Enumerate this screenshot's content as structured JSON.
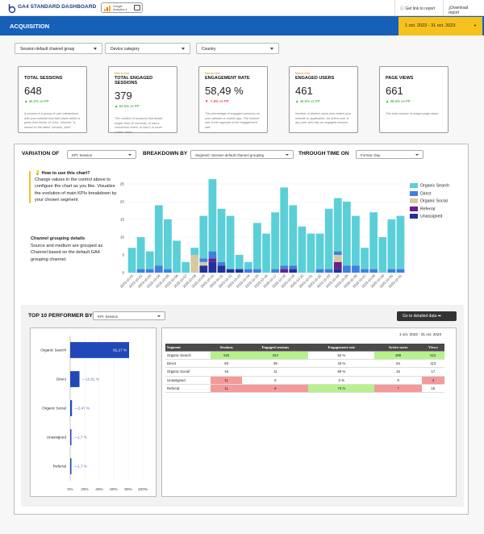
{
  "app": {
    "title": "GA4 STANDARD DASHBOARD",
    "badge_text": "Google Analytics 4",
    "get_link_label": "Get link to report",
    "download_label": "Download report"
  },
  "header": {
    "title": "ACQUISITION",
    "date_range": "1 oct. 2023 - 31 oct. 2023"
  },
  "filters": [
    {
      "label": "Session default channel group"
    },
    {
      "label": "Device category"
    },
    {
      "label": "Country"
    }
  ],
  "kpis": [
    {
      "small": "",
      "title": "TOTAL SESSIONS",
      "value": "648",
      "change": "46,3% vs PP",
      "direction": "up",
      "desc": "A session is a group of user interactions with your website that take place within a given time frame. In GA4, \"session\" is based on the latest \"session_start\""
    },
    {
      "small": "New in GA4",
      "title": "TOTAL ENGAGED SESSIONS",
      "value": "379",
      "change": "63,6% vs PP",
      "direction": "up",
      "desc": "The number of sessions that lasted longer than 10 seconds, or had a conversion event, or had 2 or more screen views."
    },
    {
      "small": "New in GA4",
      "title": "ENGAGEMENT RATE",
      "value": "58,49 %",
      "change": "-7,9% vs PP",
      "direction": "down",
      "desc": "The percentage of engaged sessions on your website or mobile app. The bounce rate is the opposite of the engagement rate."
    },
    {
      "small": "New in GA4",
      "title": "ENGAGED USERS",
      "value": "461",
      "change": "45,9% vs PP",
      "direction": "up",
      "desc": "Number of distinct users who visited your website or application. An active user is any user who has an engaged session."
    },
    {
      "small": "",
      "title": "PAGE VIEWS",
      "value": "661",
      "change": "38,6% vs PP",
      "direction": "up",
      "desc": "The total number of unique page views"
    }
  ],
  "variation": {
    "variation_label": "VARIATION OF",
    "kpi_select": "KPI: Session",
    "breakdown_label": "BREAKDOWN BY",
    "segment_select": "Segment: Session default channel grouping",
    "time_label": "THROUGH TIME ON",
    "format_select": "Format: Day",
    "howto_title": "How to use this chart?",
    "howto_text": "Change values in the control above to configure the chart as you like. Visualize the evolution of main KPIs breakdown by your chosen segment",
    "group_title": "Channel grouping details",
    "group_text": "Source and medium are grouped as Channel based on the default GA4 grouping channel."
  },
  "colors": {
    "organic_search": "#5bcfd8",
    "direct": "#3e7fe0",
    "organic_social": "#d8c8a0",
    "referral": "#6a1f8a",
    "unassigned": "#20329a",
    "header_blue": "#1660b8",
    "date_yellow": "#f6c11d",
    "bar_navy": "#2248b8"
  },
  "chart_data": [
    {
      "type": "bar",
      "stacked": true,
      "x": [
        "2023-10-01",
        "2023-10-02",
        "2023-10-03",
        "2023-10-04",
        "2023-10-05",
        "2023-10-06",
        "2023-10-07",
        "2023-10-08",
        "2023-10-09",
        "2023-10-10",
        "2023-10-11",
        "2023-10-12",
        "2023-10-13",
        "2023-10-14",
        "2023-10-15",
        "2023-10-16",
        "2023-10-17",
        "2023-10-18",
        "2023-10-19",
        "2023-10-20",
        "2023-10-21",
        "2023-10-22",
        "2023-10-23",
        "2023-10-24",
        "2023-10-25",
        "2023-10-26",
        "2023-10-27",
        "2023-10-28",
        "2023-10-29",
        "2023-10-30",
        "2023-10-31"
      ],
      "ylim": [
        0,
        25
      ],
      "yticks": [
        0,
        5,
        10,
        15,
        20,
        25
      ],
      "series": [
        {
          "name": "Organic Search",
          "values": [
            7,
            9,
            5,
            17,
            14,
            9,
            3,
            2,
            12,
            21,
            15,
            15,
            4,
            2,
            13,
            11,
            16,
            22,
            17,
            13,
            11,
            10,
            17,
            15,
            18,
            14,
            6,
            16,
            10,
            14,
            15
          ]
        },
        {
          "name": "Direct",
          "values": [
            0,
            1,
            1,
            2,
            1,
            0,
            0,
            0,
            1,
            2,
            1,
            0,
            0,
            1,
            1,
            0,
            1,
            1,
            1,
            0,
            0,
            1,
            1,
            1,
            2,
            2,
            1,
            1,
            0,
            1,
            1
          ]
        },
        {
          "name": "Organic Social",
          "values": [
            0,
            0,
            0,
            0,
            0,
            0,
            0,
            5,
            1,
            0,
            0,
            0,
            0,
            0,
            0,
            0,
            0,
            0,
            0,
            0,
            0,
            0,
            0,
            2,
            0,
            0,
            0,
            0,
            0,
            0,
            0
          ]
        },
        {
          "name": "Referral",
          "values": [
            0,
            0,
            0,
            0,
            0,
            0,
            0,
            0,
            0,
            1,
            0,
            0,
            0,
            0,
            0,
            0,
            0,
            1,
            0,
            0,
            0,
            0,
            0,
            2,
            0,
            0,
            0,
            0,
            0,
            0,
            0
          ]
        },
        {
          "name": "Unassigned",
          "values": [
            0,
            0,
            0,
            0,
            0,
            0,
            0,
            0,
            2,
            3,
            2,
            1,
            1,
            0,
            0,
            0,
            0,
            0,
            1,
            0,
            0,
            0,
            0,
            1,
            0,
            0,
            0,
            0,
            0,
            0,
            0
          ]
        }
      ]
    },
    {
      "type": "bar",
      "orientation": "horizontal",
      "categories": [
        "Organic Search",
        "Direct",
        "Organic Social",
        "Unassigned",
        "Referral"
      ],
      "values": [
        81.17,
        12.81,
        2.47,
        1.7,
        1.7
      ],
      "value_labels": [
        "81,17 %",
        "12,81 %",
        "2,47 %",
        "1,7 %",
        "1,7 %"
      ],
      "xticks": [
        "0%",
        "20%",
        "40%",
        "60%",
        "80%",
        "100%"
      ],
      "xlim": [
        0,
        100
      ]
    }
  ],
  "top10": {
    "title": "TOP 10 PERFORMER BY",
    "kpi_select": "KPI: Session",
    "goto_label": "Go to detailed data ➡",
    "date": "1 oct. 2023 - 31 oct. 2023",
    "columns": [
      "Segment",
      "Sessions",
      "Engaged sessions",
      "Engagement rate",
      "Active users",
      "Views"
    ],
    "rows": [
      {
        "cells": [
          "Organic Search",
          "526",
          "324",
          "62 %",
          "389",
          "512"
        ],
        "hl": [
          "",
          "green",
          "green",
          "",
          "green",
          "green"
        ]
      },
      {
        "cells": [
          "Direct",
          "83",
          "36",
          "43 %",
          "54",
          "113"
        ],
        "hl": [
          "",
          "",
          "",
          "",
          "",
          ""
        ]
      },
      {
        "cells": [
          "Organic Social",
          "16",
          "11",
          "69 %",
          "15",
          "17"
        ],
        "hl": [
          "",
          "",
          "",
          "",
          "",
          ""
        ]
      },
      {
        "cells": [
          "Unassigned",
          "11",
          "0",
          "0 %",
          "9",
          "4"
        ],
        "hl": [
          "",
          "red",
          "",
          "",
          "",
          "red"
        ]
      },
      {
        "cells": [
          "Referral",
          "11",
          "8",
          "73 %",
          "7",
          "15"
        ],
        "hl": [
          "",
          "red",
          "red",
          "green",
          "red",
          ""
        ]
      }
    ]
  }
}
